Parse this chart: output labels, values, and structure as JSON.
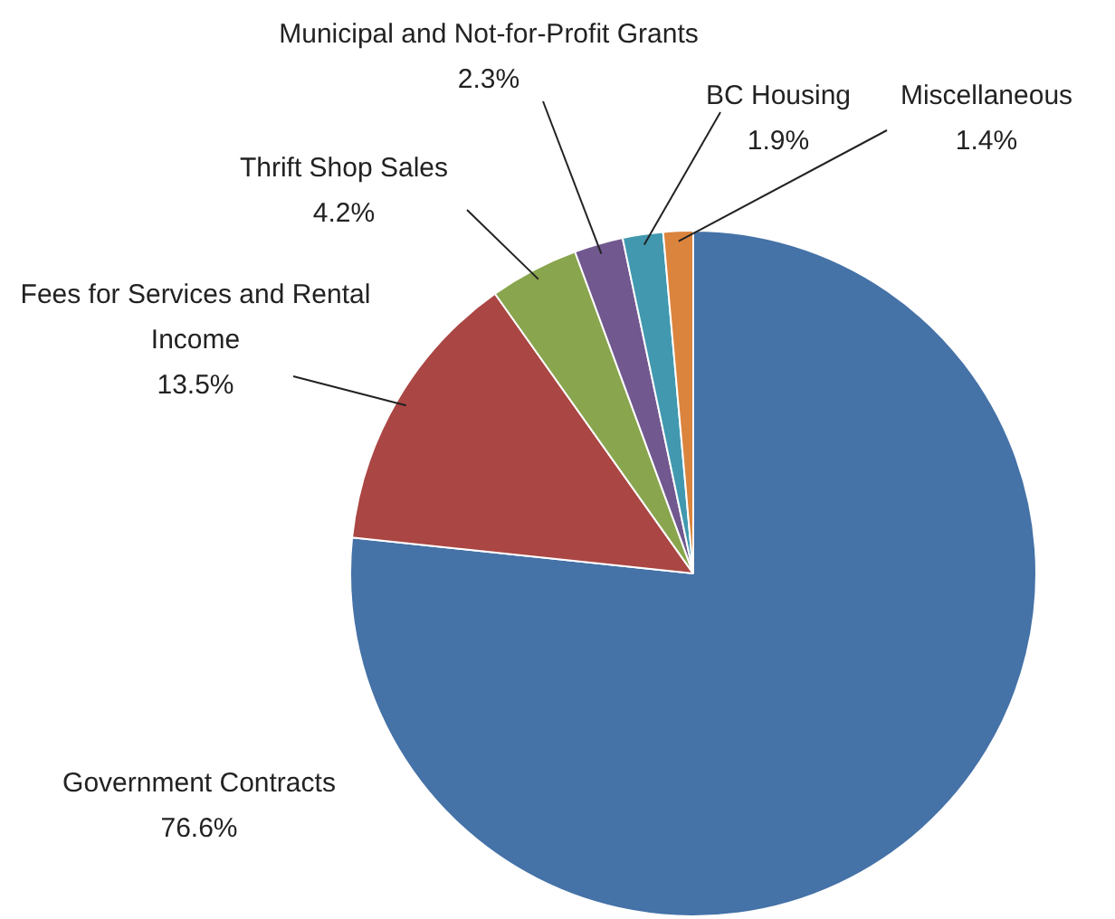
{
  "chart_data": {
    "type": "pie",
    "categories": [
      "Government Contracts",
      "Fees for Services and Rental Income",
      "Thrift Shop Sales",
      "Municipal and Not-for-Profit Grants",
      "BC Housing",
      "Miscellaneous"
    ],
    "values": [
      76.6,
      13.5,
      4.2,
      2.3,
      1.9,
      1.4
    ],
    "colors": [
      "#4572a7",
      "#aa4643",
      "#89a54e",
      "#71588f",
      "#4198af",
      "#db843d"
    ],
    "value_labels": [
      "76.6%",
      "13.5%",
      "4.2%",
      "2.3%",
      "1.9%",
      "1.4%"
    ],
    "legend": false
  }
}
